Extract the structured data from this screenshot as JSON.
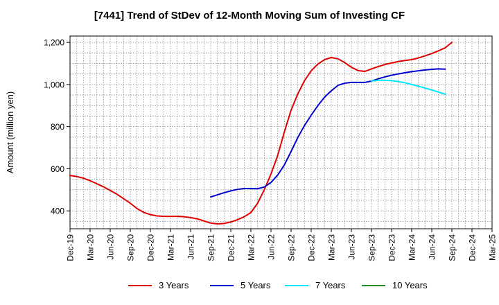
{
  "chart_data": {
    "type": "line",
    "title": "[7441]  Trend of StDev of 12-Month Moving Sum of Investing CF",
    "ylabel": "Amount (million yen)",
    "xlabel": "",
    "ylim": [
      315,
      1230
    ],
    "yticks": [
      400,
      600,
      800,
      1000,
      1200
    ],
    "ytick_labels": [
      "400",
      "600",
      "800",
      "1,000",
      "1,200"
    ],
    "x_categories": [
      "Dec-19",
      "Mar-20",
      "Jun-20",
      "Sep-20",
      "Dec-20",
      "Mar-21",
      "Jun-21",
      "Sep-21",
      "Dec-21",
      "Mar-22",
      "Jun-22",
      "Sep-22",
      "Dec-22",
      "Mar-23",
      "Jun-23",
      "Sep-23",
      "Dec-23",
      "Mar-24",
      "Jun-24",
      "Sep-24",
      "Dec-24",
      "Mar-25"
    ],
    "x_months": [
      "2019-12",
      "2020-01",
      "2020-02",
      "2020-03",
      "2020-04",
      "2020-05",
      "2020-06",
      "2020-07",
      "2020-08",
      "2020-09",
      "2020-10",
      "2020-11",
      "2020-12",
      "2021-01",
      "2021-02",
      "2021-03",
      "2021-04",
      "2021-05",
      "2021-06",
      "2021-07",
      "2021-08",
      "2021-09",
      "2021-10",
      "2021-11",
      "2021-12",
      "2022-01",
      "2022-02",
      "2022-03",
      "2022-04",
      "2022-05",
      "2022-06",
      "2022-07",
      "2022-08",
      "2022-09",
      "2022-10",
      "2022-11",
      "2022-12",
      "2023-01",
      "2023-02",
      "2023-03",
      "2023-04",
      "2023-05",
      "2023-06",
      "2023-07",
      "2023-08",
      "2023-09",
      "2023-10",
      "2023-11",
      "2023-12",
      "2024-01",
      "2024-02",
      "2024-03",
      "2024-04",
      "2024-05",
      "2024-06",
      "2024-07",
      "2024-08",
      "2024-09",
      "2024-10",
      "2024-11",
      "2024-12",
      "2025-01",
      "2025-02",
      "2025-03"
    ],
    "grid": true,
    "legend_position": "bottom",
    "series": [
      {
        "name": "3 Years",
        "color": "#e00000",
        "x_start": "2019-12",
        "values": [
          568,
          563,
          555,
          543,
          529,
          514,
          497,
          479,
          458,
          436,
          411,
          393,
          382,
          376,
          374,
          374,
          374,
          372,
          368,
          362,
          352,
          342,
          338,
          340,
          347,
          358,
          372,
          392,
          436,
          500,
          575,
          663,
          775,
          878,
          955,
          1018,
          1065,
          1097,
          1118,
          1128,
          1122,
          1104,
          1082,
          1066,
          1062,
          1074,
          1085,
          1095,
          1102,
          1109,
          1114,
          1118,
          1126,
          1136,
          1147,
          1160,
          1174,
          1200
        ]
      },
      {
        "name": "5 Years",
        "color": "#0000cc",
        "x_start": "2021-09",
        "values": [
          466,
          476,
          486,
          495,
          502,
          506,
          506,
          505,
          513,
          535,
          570,
          618,
          682,
          748,
          805,
          854,
          900,
          940,
          970,
          996,
          1006,
          1010,
          1010,
          1010,
          1016,
          1027,
          1036,
          1044,
          1050,
          1056,
          1061,
          1065,
          1069,
          1072,
          1074,
          1073
        ]
      },
      {
        "name": "7 Years",
        "color": "#00e5ff",
        "x_start": "2023-09",
        "values": [
          1016,
          1020,
          1020,
          1018,
          1014,
          1008,
          1000,
          992,
          983,
          974,
          964,
          954
        ]
      },
      {
        "name": "10 Years",
        "color": "#228b22",
        "x_start": "2025-03",
        "values": []
      }
    ]
  }
}
